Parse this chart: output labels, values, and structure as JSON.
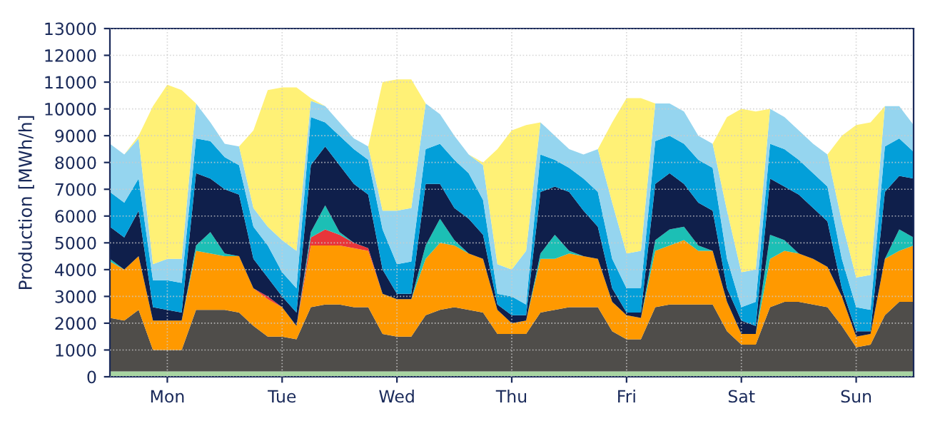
{
  "chart_data": {
    "type": "area",
    "stacked": true,
    "ylabel": "Production [MWh/h]",
    "categories": [
      null,
      null,
      null,
      null,
      "Mon",
      null,
      null,
      null,
      null,
      null,
      null,
      null,
      "Tue",
      null,
      null,
      null,
      null,
      null,
      null,
      null,
      "Wed",
      null,
      null,
      null,
      null,
      null,
      null,
      null,
      "Thu",
      null,
      null,
      null,
      null,
      null,
      null,
      null,
      "Fri",
      null,
      null,
      null,
      null,
      null,
      null,
      null,
      "Sat",
      null,
      null,
      null,
      null,
      null,
      null,
      null,
      "Sun",
      null,
      null,
      null,
      null
    ],
    "ylim": [
      0,
      13000
    ],
    "yticks": [
      0,
      1000,
      2000,
      3000,
      4000,
      5000,
      6000,
      7000,
      8000,
      9000,
      10000,
      11000,
      12000,
      13000
    ],
    "grid": true,
    "legend": false,
    "series": [
      {
        "color": "#a8d5a2",
        "values": [
          200,
          200,
          200,
          200,
          200,
          200,
          200,
          200,
          200,
          200,
          200,
          200,
          200,
          200,
          200,
          200,
          200,
          200,
          200,
          200,
          200,
          200,
          200,
          200,
          200,
          200,
          200,
          200,
          200,
          200,
          200,
          200,
          200,
          200,
          200,
          200,
          200,
          200,
          200,
          200,
          200,
          200,
          200,
          200,
          200,
          200,
          200,
          200,
          200,
          200,
          200,
          200,
          200,
          200,
          200,
          200,
          200
        ]
      },
      {
        "color": "#4f4d4a",
        "values": [
          2000,
          1900,
          2300,
          800,
          800,
          800,
          2300,
          2300,
          2300,
          2200,
          1700,
          1300,
          1300,
          1200,
          2400,
          2500,
          2500,
          2400,
          2400,
          1400,
          1300,
          1300,
          2100,
          2300,
          2400,
          2300,
          2200,
          1400,
          1400,
          1400,
          2200,
          2300,
          2400,
          2400,
          2400,
          1500,
          1200,
          1200,
          2400,
          2500,
          2500,
          2500,
          2500,
          1500,
          1000,
          1000,
          2400,
          2600,
          2600,
          2500,
          2400,
          1700,
          900,
          1000,
          2100,
          2600,
          2600
        ]
      },
      {
        "color": "#ff9900",
        "values": [
          2100,
          1900,
          2000,
          1100,
          1100,
          1100,
          2200,
          2100,
          2000,
          2100,
          1400,
          1400,
          1100,
          500,
          2300,
          2200,
          2200,
          2200,
          2100,
          1500,
          1400,
          1400,
          2100,
          2500,
          2300,
          2100,
          2000,
          900,
          400,
          500,
          2000,
          1900,
          2000,
          1900,
          1800,
          1100,
          900,
          800,
          2100,
          2200,
          2400,
          2000,
          2000,
          1100,
          400,
          400,
          1800,
          1900,
          1800,
          1700,
          1500,
          1100,
          400,
          400,
          2100,
          1900,
          2100
        ]
      },
      {
        "color": "#e8353a",
        "values": [
          0,
          0,
          0,
          0,
          0,
          0,
          0,
          0,
          0,
          0,
          0,
          100,
          0,
          0,
          300,
          600,
          400,
          200,
          100,
          0,
          0,
          0,
          0,
          0,
          0,
          0,
          0,
          0,
          0,
          0,
          0,
          0,
          0,
          0,
          0,
          0,
          0,
          0,
          0,
          0,
          0,
          0,
          0,
          0,
          0,
          0,
          0,
          0,
          0,
          0,
          0,
          0,
          0,
          0,
          0,
          0,
          0
        ]
      },
      {
        "color": "#1cbfb5",
        "values": [
          100,
          0,
          0,
          0,
          0,
          0,
          200,
          800,
          100,
          0,
          0,
          0,
          0,
          0,
          200,
          900,
          100,
          0,
          0,
          0,
          0,
          0,
          500,
          900,
          200,
          0,
          0,
          0,
          0,
          0,
          200,
          900,
          100,
          0,
          0,
          0,
          0,
          0,
          400,
          600,
          500,
          200,
          0,
          0,
          0,
          0,
          900,
          400,
          0,
          0,
          0,
          0,
          0,
          0,
          0,
          800,
          300
        ]
      },
      {
        "color": "#0f1f4b",
        "values": [
          1200,
          1200,
          1700,
          500,
          400,
          300,
          2700,
          2000,
          2400,
          2300,
          1100,
          700,
          400,
          500,
          2500,
          2200,
          2500,
          2200,
          2000,
          900,
          200,
          200,
          2300,
          1300,
          1200,
          1300,
          900,
          200,
          300,
          200,
          2300,
          1800,
          2200,
          1700,
          1200,
          500,
          100,
          200,
          2100,
          2100,
          1600,
          1600,
          1500,
          500,
          500,
          300,
          2100,
          2000,
          2200,
          1900,
          1700,
          300,
          200,
          100,
          2500,
          2000,
          2200
        ]
      },
      {
        "color": "#039fd9",
        "values": [
          1300,
          1300,
          1200,
          1000,
          1100,
          1100,
          1300,
          1400,
          1200,
          1100,
          1200,
          1200,
          900,
          900,
          1800,
          900,
          1100,
          1300,
          1300,
          1500,
          1100,
          1200,
          1300,
          1500,
          1800,
          1700,
          1300,
          400,
          700,
          400,
          1400,
          1000,
          900,
          1200,
          1300,
          1100,
          900,
          900,
          1600,
          1400,
          1500,
          1600,
          1600,
          1100,
          500,
          900,
          1300,
          1400,
          1300,
          1300,
          1300,
          1100,
          900,
          800,
          1700,
          1400,
          1000
        ]
      },
      {
        "color": "#95d5ef",
        "values": [
          1800,
          1800,
          1500,
          600,
          800,
          900,
          1300,
          700,
          500,
          700,
          700,
          700,
          1200,
          1400,
          600,
          600,
          500,
          400,
          500,
          700,
          2000,
          2000,
          1700,
          1100,
          900,
          700,
          1300,
          1100,
          1000,
          2000,
          1200,
          900,
          700,
          900,
          1600,
          2100,
          1300,
          1400,
          1400,
          1200,
          1200,
          900,
          900,
          1800,
          1300,
          1200,
          1300,
          1200,
          1100,
          1100,
          1200,
          1400,
          1100,
          1300,
          1500,
          1200,
          1000
        ]
      },
      {
        "color": "#fff176",
        "values": [
          0,
          0,
          100,
          5900,
          6500,
          6300,
          0,
          0,
          0,
          0,
          2900,
          5100,
          5700,
          6100,
          100,
          0,
          0,
          0,
          0,
          4800,
          4900,
          4800,
          0,
          0,
          0,
          0,
          100,
          4300,
          5200,
          4700,
          0,
          0,
          0,
          0,
          0,
          3000,
          5800,
          5700,
          0,
          0,
          0,
          0,
          0,
          3500,
          6100,
          5900,
          0,
          0,
          0,
          0,
          0,
          3200,
          5700,
          5700,
          0,
          0,
          0
        ]
      }
    ]
  }
}
